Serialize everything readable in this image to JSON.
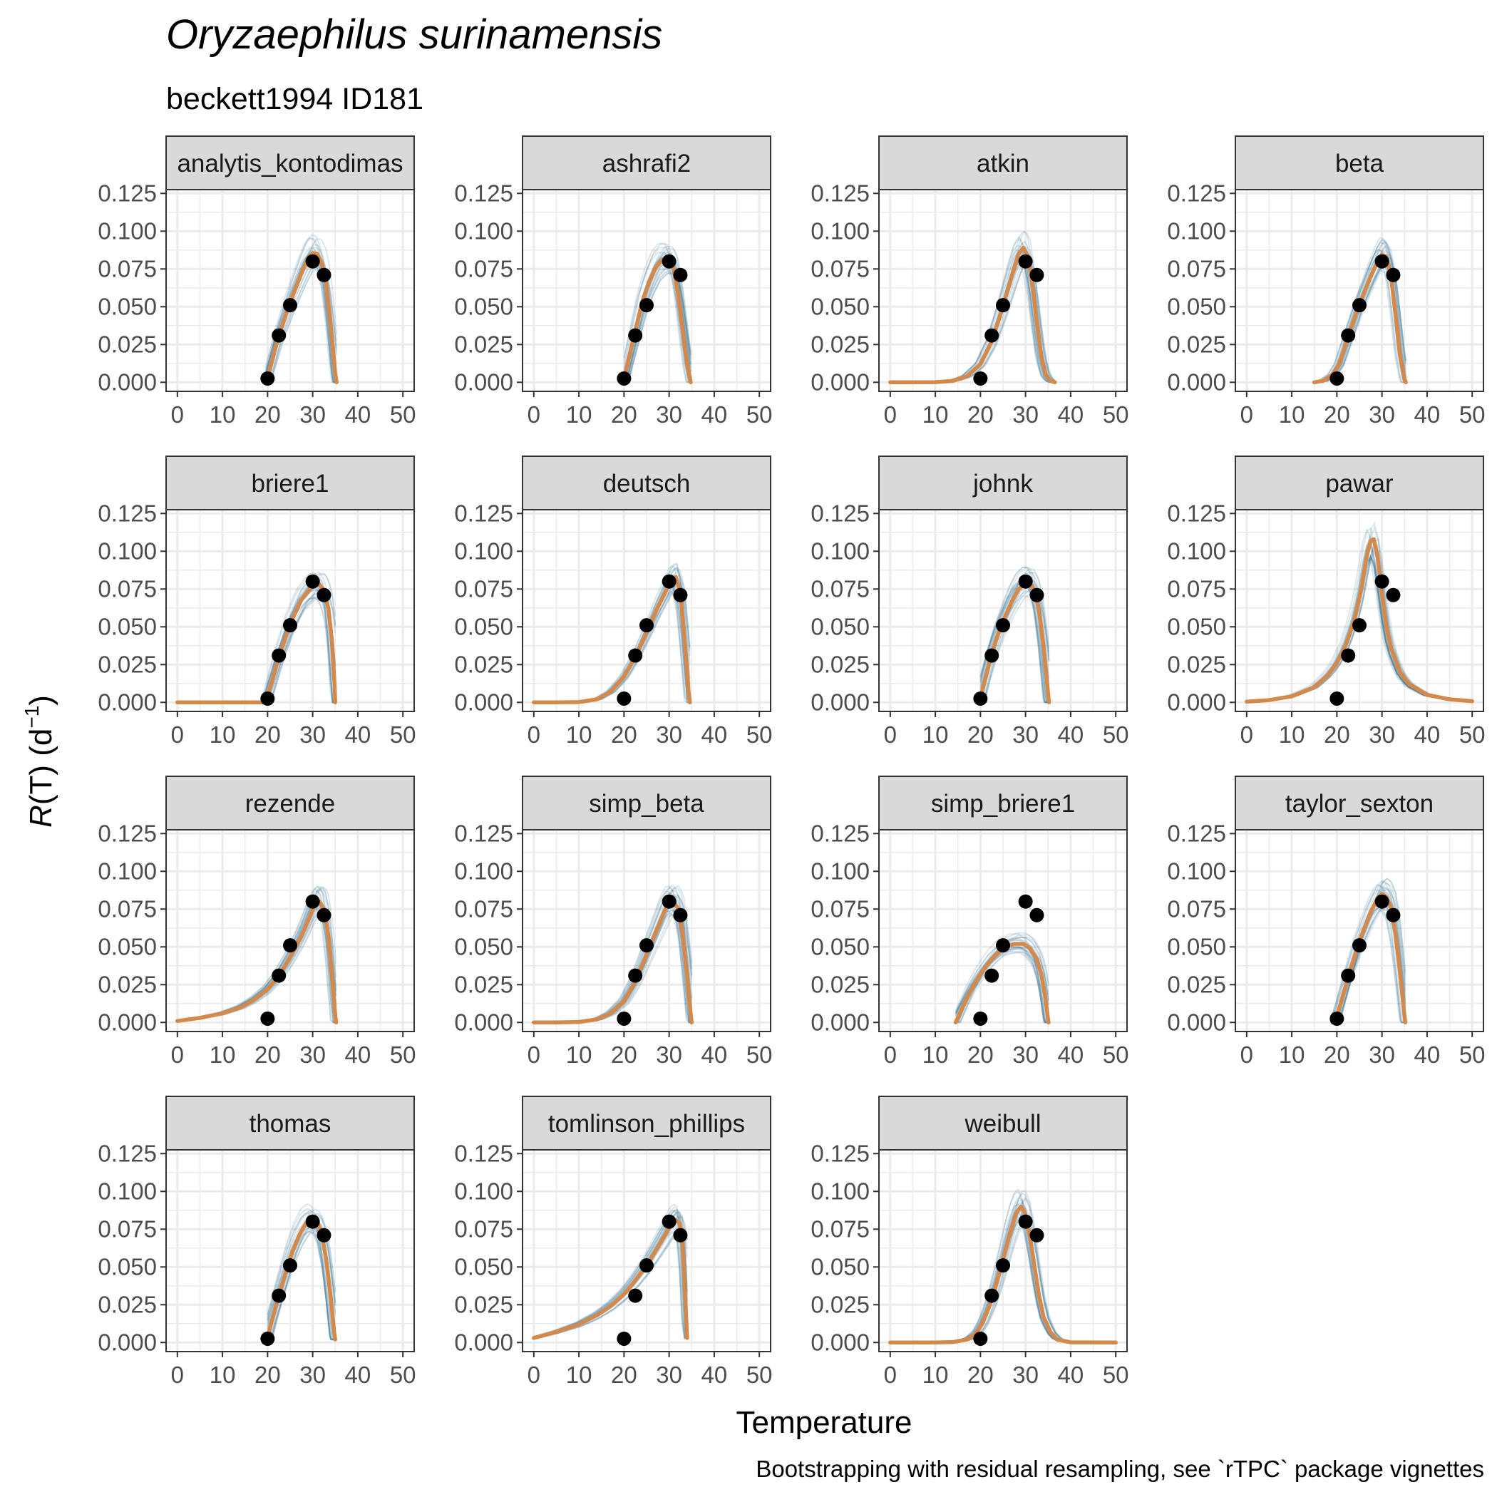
{
  "colors": {
    "fit": "#d4884a",
    "bootstrap": "#2b6c8a",
    "points": "#000000",
    "strip_fill": "#d9d9d9",
    "grid": "#ebebeb"
  },
  "chart_data": {
    "type": "line",
    "title": "Oryzaephilus surinamensis",
    "subtitle": "beckett1994 ID181",
    "xlabel": "Temperature",
    "ylabel_parts": {
      "sym": "R",
      "rest": "(T) (d",
      "sup": "−1",
      "close": ")"
    },
    "caption": "Bootstrapping with residual resampling, see `rTPC` package vignettes",
    "xlim": [
      -2.5,
      52.5
    ],
    "ylim": [
      -0.006,
      0.1275
    ],
    "x_ticks": [
      0,
      10,
      20,
      30,
      40,
      50
    ],
    "y_ticks": [
      0,
      0.025,
      0.05,
      0.075,
      0.1,
      0.125
    ],
    "y_tick_labels": [
      "0.000",
      "0.025",
      "0.050",
      "0.075",
      "0.100",
      "0.125"
    ],
    "grid": true,
    "observations": {
      "x": [
        20,
        22.5,
        25,
        30,
        32.5
      ],
      "y": [
        0.0025,
        0.031,
        0.051,
        0.08,
        0.071
      ]
    },
    "panels": [
      {
        "name": "analytis_kontodimas",
        "fit": [
          [
            19.5,
            0
          ],
          [
            20,
            0.003
          ],
          [
            22.5,
            0.031
          ],
          [
            25,
            0.053
          ],
          [
            27.5,
            0.072
          ],
          [
            29,
            0.082
          ],
          [
            30,
            0.0855
          ],
          [
            31,
            0.085
          ],
          [
            32,
            0.079
          ],
          [
            33,
            0.065
          ],
          [
            34,
            0.038
          ],
          [
            35,
            0.006
          ],
          [
            35.3,
            0
          ]
        ]
      },
      {
        "name": "ashrafi2",
        "fit": [
          [
            20,
            0.002
          ],
          [
            21,
            0.015
          ],
          [
            22.5,
            0.034
          ],
          [
            24,
            0.053
          ],
          [
            25.5,
            0.066
          ],
          [
            27,
            0.076
          ],
          [
            28.5,
            0.081
          ],
          [
            30,
            0.081
          ],
          [
            31,
            0.075
          ],
          [
            32,
            0.058
          ],
          [
            33,
            0.035
          ],
          [
            34,
            0.012
          ],
          [
            34.8,
            0
          ]
        ]
      },
      {
        "name": "atkin",
        "fit": [
          [
            0,
            0
          ],
          [
            5,
            0
          ],
          [
            10,
            0.0001
          ],
          [
            14,
            0.001
          ],
          [
            17,
            0.004
          ],
          [
            20,
            0.012
          ],
          [
            22.5,
            0.027
          ],
          [
            25,
            0.05
          ],
          [
            27,
            0.071
          ],
          [
            28.5,
            0.085
          ],
          [
            29.5,
            0.089
          ],
          [
            30.5,
            0.084
          ],
          [
            31.5,
            0.066
          ],
          [
            32.5,
            0.04
          ],
          [
            33.5,
            0.017
          ],
          [
            34.5,
            0.005
          ],
          [
            35.5,
            0.001
          ],
          [
            36.5,
            0
          ]
        ]
      },
      {
        "name": "beta",
        "fit": [
          [
            15,
            0
          ],
          [
            17,
            0.001
          ],
          [
            19,
            0.005
          ],
          [
            20.5,
            0.012
          ],
          [
            22.5,
            0.03
          ],
          [
            25,
            0.052
          ],
          [
            27.5,
            0.07
          ],
          [
            29,
            0.08
          ],
          [
            30,
            0.0845
          ],
          [
            31,
            0.083
          ],
          [
            32,
            0.07
          ],
          [
            33,
            0.045
          ],
          [
            34,
            0.018
          ],
          [
            35,
            0.002
          ],
          [
            35.3,
            0
          ]
        ]
      },
      {
        "name": "briere1",
        "fit": [
          [
            0,
            0
          ],
          [
            19.5,
            0
          ],
          [
            20,
            0.004
          ],
          [
            22.5,
            0.03
          ],
          [
            25,
            0.052
          ],
          [
            27.5,
            0.068
          ],
          [
            30,
            0.077
          ],
          [
            31.5,
            0.078
          ],
          [
            32.5,
            0.074
          ],
          [
            33.5,
            0.062
          ],
          [
            34.3,
            0.04
          ],
          [
            34.8,
            0.015
          ],
          [
            35,
            0
          ]
        ]
      },
      {
        "name": "deutsch",
        "fit": [
          [
            0,
            0
          ],
          [
            5,
            0
          ],
          [
            10,
            0.0002
          ],
          [
            14,
            0.002
          ],
          [
            17,
            0.007
          ],
          [
            20,
            0.017
          ],
          [
            22.5,
            0.03
          ],
          [
            25,
            0.046
          ],
          [
            27.5,
            0.063
          ],
          [
            29.5,
            0.075
          ],
          [
            30.5,
            0.081
          ],
          [
            31.5,
            0.083
          ],
          [
            32.5,
            0.072
          ],
          [
            33.5,
            0.04
          ],
          [
            34.3,
            0.008
          ],
          [
            34.6,
            0
          ]
        ]
      },
      {
        "name": "johnk",
        "fit": [
          [
            20,
            0.003
          ],
          [
            21,
            0.015
          ],
          [
            22.5,
            0.032
          ],
          [
            24,
            0.046
          ],
          [
            25.5,
            0.057
          ],
          [
            27,
            0.067
          ],
          [
            28.5,
            0.075
          ],
          [
            30,
            0.079
          ],
          [
            31,
            0.079
          ],
          [
            32,
            0.074
          ],
          [
            33,
            0.061
          ],
          [
            34,
            0.037
          ],
          [
            35,
            0.006
          ],
          [
            35.2,
            0
          ]
        ]
      },
      {
        "name": "pawar",
        "fit": [
          [
            0,
            0.0005
          ],
          [
            5,
            0.0015
          ],
          [
            10,
            0.004
          ],
          [
            15,
            0.01
          ],
          [
            18,
            0.018
          ],
          [
            20,
            0.026
          ],
          [
            22,
            0.038
          ],
          [
            24,
            0.056
          ],
          [
            25.5,
            0.076
          ],
          [
            26.5,
            0.095
          ],
          [
            27.5,
            0.107
          ],
          [
            28.2,
            0.108
          ],
          [
            29,
            0.097
          ],
          [
            30,
            0.072
          ],
          [
            31,
            0.05
          ],
          [
            32,
            0.036
          ],
          [
            34,
            0.02
          ],
          [
            36,
            0.012
          ],
          [
            40,
            0.005
          ],
          [
            45,
            0.002
          ],
          [
            50,
            0.0008
          ]
        ]
      },
      {
        "name": "rezende",
        "fit": [
          [
            0,
            0.001
          ],
          [
            5,
            0.003
          ],
          [
            10,
            0.006
          ],
          [
            14,
            0.01
          ],
          [
            17,
            0.015
          ],
          [
            20,
            0.022
          ],
          [
            22.5,
            0.031
          ],
          [
            25,
            0.043
          ],
          [
            27.5,
            0.057
          ],
          [
            29.5,
            0.071
          ],
          [
            30.5,
            0.078
          ],
          [
            31.5,
            0.08
          ],
          [
            32.5,
            0.075
          ],
          [
            33.5,
            0.057
          ],
          [
            34.3,
            0.03
          ],
          [
            35,
            0.005
          ],
          [
            35.2,
            0
          ]
        ]
      },
      {
        "name": "simp_beta",
        "fit": [
          [
            0,
            0
          ],
          [
            5,
            0
          ],
          [
            10,
            0.0003
          ],
          [
            14,
            0.002
          ],
          [
            17,
            0.006
          ],
          [
            20,
            0.014
          ],
          [
            22.5,
            0.027
          ],
          [
            25,
            0.045
          ],
          [
            27.5,
            0.063
          ],
          [
            29,
            0.074
          ],
          [
            30,
            0.079
          ],
          [
            31,
            0.08
          ],
          [
            32,
            0.075
          ],
          [
            33,
            0.059
          ],
          [
            34,
            0.031
          ],
          [
            34.8,
            0.005
          ],
          [
            35,
            0
          ]
        ]
      },
      {
        "name": "simp_briere1",
        "fit": [
          [
            14.5,
            0
          ],
          [
            16,
            0.01
          ],
          [
            18,
            0.022
          ],
          [
            20,
            0.032
          ],
          [
            22.5,
            0.042
          ],
          [
            25,
            0.049
          ],
          [
            27.5,
            0.052
          ],
          [
            29.5,
            0.052
          ],
          [
            31,
            0.049
          ],
          [
            32.5,
            0.042
          ],
          [
            33.5,
            0.032
          ],
          [
            34.3,
            0.018
          ],
          [
            35,
            0.002
          ],
          [
            35.1,
            0
          ]
        ]
      },
      {
        "name": "taylor_sexton",
        "fit": [
          [
            19,
            0
          ],
          [
            20,
            0.004
          ],
          [
            22.5,
            0.03
          ],
          [
            25,
            0.054
          ],
          [
            27.5,
            0.073
          ],
          [
            29,
            0.082
          ],
          [
            30,
            0.085
          ],
          [
            31,
            0.083
          ],
          [
            32,
            0.076
          ],
          [
            33,
            0.059
          ],
          [
            34,
            0.033
          ],
          [
            35,
            0.004
          ],
          [
            35.2,
            0
          ]
        ]
      },
      {
        "name": "thomas",
        "fit": [
          [
            20,
            0.003
          ],
          [
            21,
            0.015
          ],
          [
            22.5,
            0.031
          ],
          [
            24,
            0.046
          ],
          [
            25.5,
            0.06
          ],
          [
            27,
            0.071
          ],
          [
            28.5,
            0.079
          ],
          [
            30,
            0.082
          ],
          [
            31,
            0.08
          ],
          [
            32,
            0.072
          ],
          [
            33,
            0.055
          ],
          [
            34,
            0.03
          ],
          [
            34.8,
            0.006
          ],
          [
            35,
            0.002
          ]
        ]
      },
      {
        "name": "tomlinson_phillips",
        "fit": [
          [
            0,
            0.003
          ],
          [
            5,
            0.007
          ],
          [
            10,
            0.012
          ],
          [
            14,
            0.018
          ],
          [
            17,
            0.024
          ],
          [
            20,
            0.032
          ],
          [
            22.5,
            0.041
          ],
          [
            25,
            0.051
          ],
          [
            27.5,
            0.063
          ],
          [
            29.5,
            0.073
          ],
          [
            30.5,
            0.078
          ],
          [
            31.5,
            0.081
          ],
          [
            32.3,
            0.079
          ],
          [
            33,
            0.065
          ],
          [
            33.5,
            0.035
          ],
          [
            34,
            0.003
          ]
        ]
      },
      {
        "name": "weibull",
        "fit": [
          [
            0,
            0
          ],
          [
            10,
            0
          ],
          [
            14,
            0.0003
          ],
          [
            17,
            0.002
          ],
          [
            19,
            0.006
          ],
          [
            20.5,
            0.013
          ],
          [
            22.5,
            0.028
          ],
          [
            24.5,
            0.049
          ],
          [
            26.5,
            0.072
          ],
          [
            28,
            0.086
          ],
          [
            29,
            0.09
          ],
          [
            30,
            0.085
          ],
          [
            31,
            0.07
          ],
          [
            32,
            0.05
          ],
          [
            33,
            0.031
          ],
          [
            34,
            0.017
          ],
          [
            35.5,
            0.007
          ],
          [
            37,
            0.002
          ],
          [
            40,
            0.0001
          ],
          [
            50,
            0
          ]
        ]
      }
    ]
  }
}
